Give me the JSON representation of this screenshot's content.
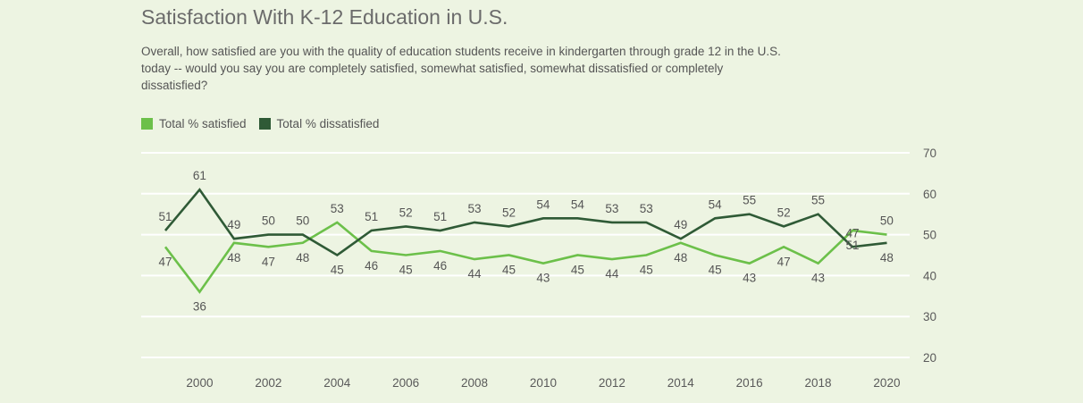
{
  "chart_data": {
    "type": "line",
    "title": "Satisfaction With K-12 Education in U.S.",
    "subtitle": "Overall, how satisfied are you with the quality of education students receive in kindergarten through grade 12 in the U.S. today -- would you say you are completely satisfied, somewhat satisfied, somewhat dissatisfied or completely dissatisfied?",
    "x": [
      1999,
      2000,
      2001,
      2002,
      2003,
      2004,
      2005,
      2006,
      2007,
      2008,
      2009,
      2010,
      2011,
      2012,
      2013,
      2014,
      2015,
      2016,
      2017,
      2018,
      2019,
      2020
    ],
    "xticks": [
      2000,
      2002,
      2004,
      2006,
      2008,
      2010,
      2012,
      2014,
      2016,
      2018,
      2020
    ],
    "yticks": [
      20,
      30,
      40,
      50,
      60,
      70
    ],
    "ylim": [
      20,
      70
    ],
    "xlabel": "",
    "ylabel": "",
    "grid": true,
    "legend_position": "top-left",
    "series": [
      {
        "name": "Total % satisfied",
        "color": "#6cc04a",
        "values": [
          47,
          36,
          48,
          47,
          48,
          53,
          46,
          45,
          46,
          44,
          45,
          43,
          45,
          44,
          45,
          48,
          45,
          43,
          47,
          43,
          51,
          50
        ]
      },
      {
        "name": "Total % dissatisfied",
        "color": "#2f5a36",
        "values": [
          51,
          61,
          49,
          50,
          50,
          45,
          51,
          52,
          51,
          53,
          52,
          54,
          54,
          53,
          53,
          49,
          54,
          55,
          52,
          55,
          47,
          48
        ]
      }
    ],
    "label_positions": {
      "Total % satisfied": [
        "below",
        "below",
        "below",
        "below",
        "below",
        "above",
        "below",
        "below",
        "below",
        "below",
        "below",
        "below",
        "below",
        "below",
        "below",
        "below",
        "below",
        "below",
        "below",
        "below",
        "below",
        "above"
      ],
      "Total % dissatisfied": [
        "above",
        "above",
        "above",
        "above",
        "above",
        "below",
        "above",
        "above",
        "above",
        "above",
        "above",
        "above",
        "above",
        "above",
        "above",
        "above",
        "above",
        "above",
        "above",
        "above",
        "above",
        "below"
      ]
    }
  }
}
